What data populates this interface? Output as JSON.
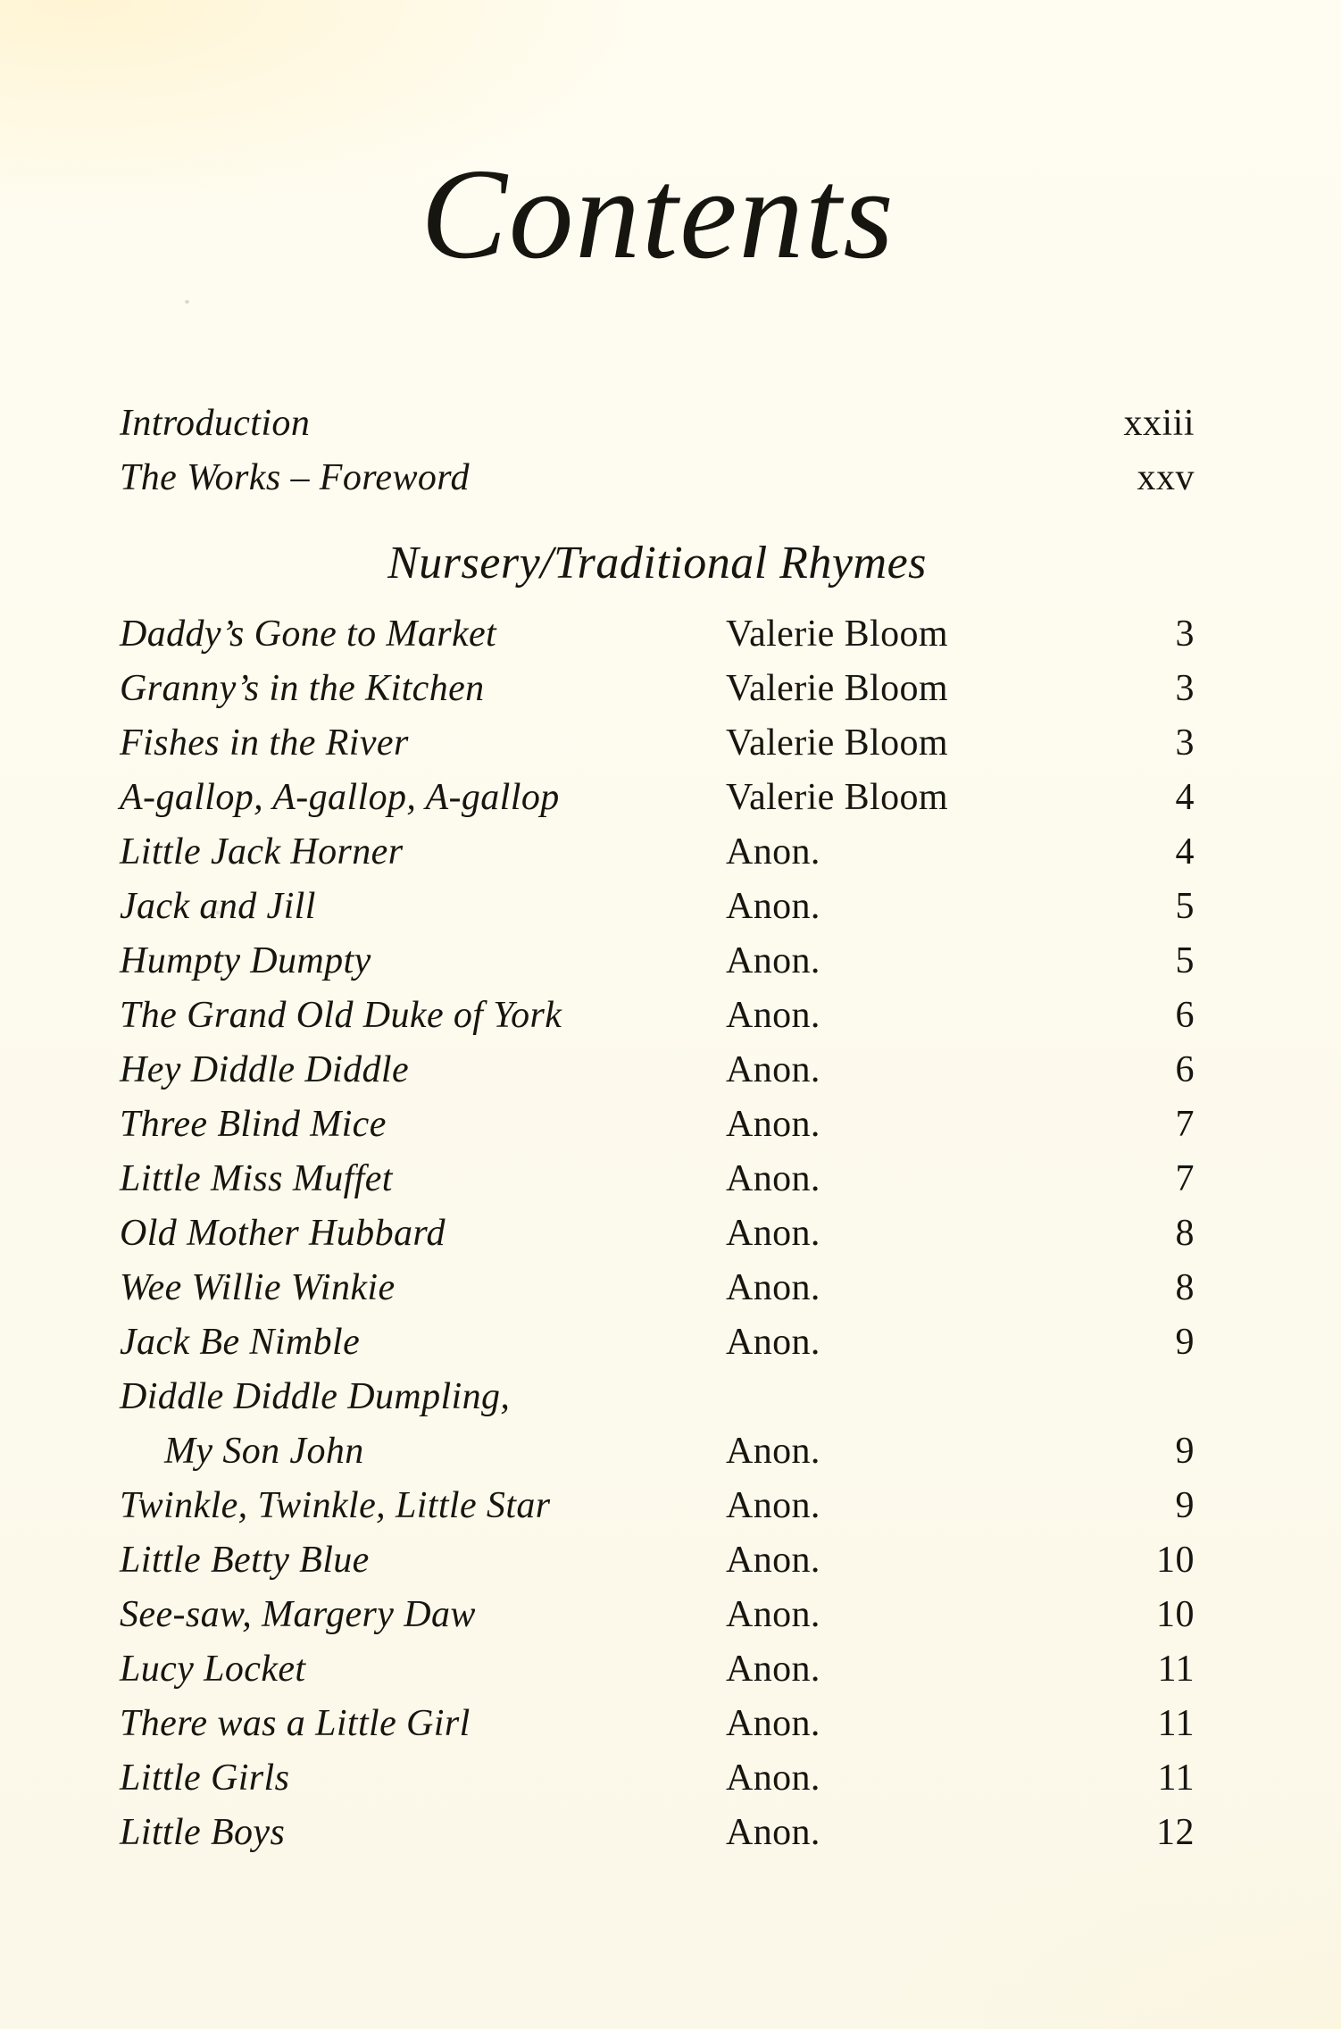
{
  "page": {
    "title": "Contents",
    "front_matter": [
      {
        "title": "Introduction",
        "page": "xxiii"
      },
      {
        "title": "The Works – Foreword",
        "page": "xxv"
      }
    ],
    "section": {
      "heading": "Nursery/Traditional Rhymes",
      "entries": [
        {
          "title": "Daddy’s Gone to Market",
          "author": "Valerie Bloom",
          "page": "3"
        },
        {
          "title": "Granny’s in the Kitchen",
          "author": "Valerie Bloom",
          "page": "3"
        },
        {
          "title": "Fishes in the River",
          "author": "Valerie Bloom",
          "page": "3"
        },
        {
          "title": "A-gallop, A-gallop, A-gallop",
          "author": "Valerie Bloom",
          "page": "4"
        },
        {
          "title": "Little Jack Horner",
          "author": "Anon.",
          "page": "4"
        },
        {
          "title": "Jack and Jill",
          "author": "Anon.",
          "page": "5"
        },
        {
          "title": "Humpty Dumpty",
          "author": "Anon.",
          "page": "5"
        },
        {
          "title": "The Grand Old Duke of York",
          "author": "Anon.",
          "page": "6"
        },
        {
          "title": "Hey Diddle Diddle",
          "author": "Anon.",
          "page": "6"
        },
        {
          "title": "Three Blind Mice",
          "author": "Anon.",
          "page": "7"
        },
        {
          "title": "Little Miss Muffet",
          "author": "Anon.",
          "page": "7"
        },
        {
          "title": "Old Mother Hubbard",
          "author": "Anon.",
          "page": "8"
        },
        {
          "title": "Wee Willie Winkie",
          "author": "Anon.",
          "page": "8"
        },
        {
          "title": "Jack Be Nimble",
          "author": "Anon.",
          "page": "9"
        },
        {
          "title": "Diddle Diddle Dumpling,",
          "author": "",
          "page": ""
        },
        {
          "title": "My Son John",
          "author": "Anon.",
          "page": "9",
          "indent": true
        },
        {
          "title": "Twinkle, Twinkle, Little Star",
          "author": "Anon.",
          "page": "9"
        },
        {
          "title": "Little Betty Blue",
          "author": "Anon.",
          "page": "10"
        },
        {
          "title": "See-saw, Margery Daw",
          "author": "Anon.",
          "page": "10"
        },
        {
          "title": "Lucy Locket",
          "author": "Anon.",
          "page": "11"
        },
        {
          "title": "There was a Little Girl",
          "author": "Anon.",
          "page": "11"
        },
        {
          "title": "Little Girls",
          "author": "Anon.",
          "page": "11"
        },
        {
          "title": "Little Boys",
          "author": "Anon.",
          "page": "12"
        }
      ]
    }
  }
}
